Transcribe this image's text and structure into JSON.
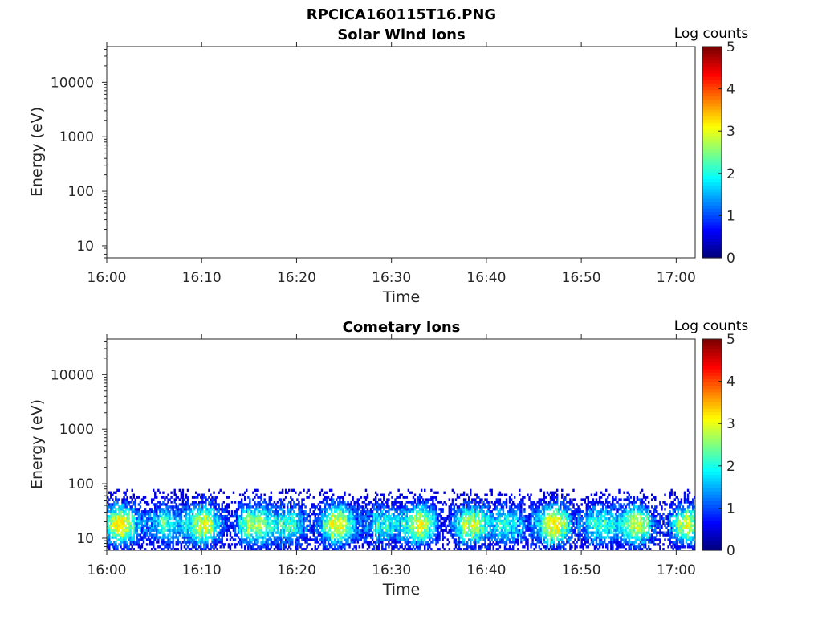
{
  "figure_title": "RPCICA160115T16.PNG",
  "colorbar_max_color": "#800000",
  "chart_data": [
    {
      "type": "heatmap",
      "title": "Solar Wind Ions",
      "xlabel": "Time",
      "ylabel": "Energy (eV)",
      "x_tick_labels": [
        "16:00",
        "16:10",
        "16:20",
        "16:30",
        "16:40",
        "16:50",
        "17:00"
      ],
      "xlim": [
        "16:00",
        "17:02"
      ],
      "y_scale": "log",
      "ylim": [
        6,
        45000
      ],
      "y_tick_labels": [
        "10",
        "100",
        "1000",
        "10000"
      ],
      "colorbar": {
        "label": "Log counts",
        "ticks": [
          "0",
          "1",
          "2",
          "3",
          "4",
          "5"
        ],
        "range": [
          0,
          5
        ],
        "colormap": "jet"
      },
      "data_description": "no counts recorded",
      "grid": false
    },
    {
      "type": "heatmap",
      "title": "Cometary Ions",
      "xlabel": "Time",
      "ylabel": "Energy (eV)",
      "x_tick_labels": [
        "16:00",
        "16:10",
        "16:20",
        "16:30",
        "16:40",
        "16:50",
        "17:00"
      ],
      "xlim": [
        "16:00",
        "17:02"
      ],
      "y_scale": "log",
      "ylim": [
        6,
        45000
      ],
      "y_tick_labels": [
        "10",
        "100",
        "1000",
        "10000"
      ],
      "colorbar": {
        "label": "Log counts",
        "ticks": [
          "0",
          "1",
          "2",
          "3",
          "4",
          "5"
        ],
        "range": [
          0,
          5
        ],
        "colormap": "jet"
      },
      "energy_range_of_signal": [
        6,
        80
      ],
      "peak_energy": 17,
      "peak_log_counts": 3.0,
      "time_range_of_signal": [
        "16:00",
        "17:02"
      ],
      "grid": false
    }
  ]
}
